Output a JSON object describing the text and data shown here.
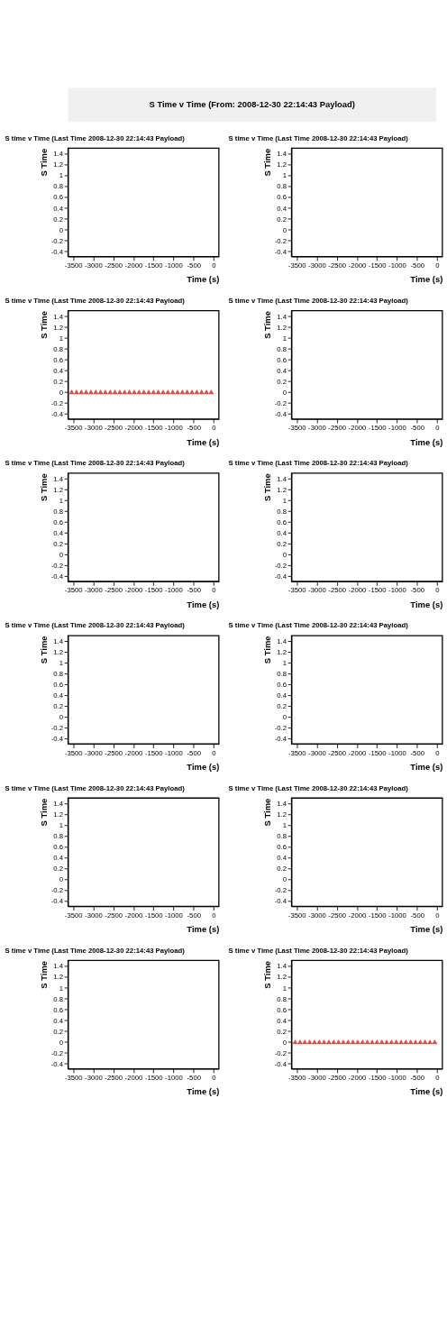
{
  "chart_data": [
    {
      "type": "scatter",
      "title": "S time v Time (Last Time 2008-12-30 22:14:43 Payload)",
      "annotations": [
        "S Time v Time (From: 2008-12-30 22:14:43 Payload)"
      ],
      "xlabel": "Time (s)",
      "ylabel": "S Time",
      "xlim": [
        -3630,
        130
      ],
      "ylim": [
        -0.5,
        1.5
      ],
      "xticks": [
        -3500,
        -3000,
        -2500,
        -2000,
        -1500,
        -1000,
        -500,
        0
      ],
      "yticks": [
        -0.4,
        -0.2,
        0,
        0.2,
        0.4,
        0.6,
        0.8,
        1,
        1.2,
        1.4
      ],
      "grid": false,
      "marker": "triangle"
    },
    {
      "type": "scatter",
      "title": "S time v Time (Last Time 2008-12-30 22:14:43 Payload)",
      "xlabel": "Time (s)",
      "ylabel": "S Time",
      "xlim": [
        -3630,
        130
      ],
      "ylim": [
        -0.5,
        1.5
      ],
      "xticks": [
        -3500,
        -3000,
        -2500,
        -2000,
        -1500,
        -1000,
        -500,
        0
      ],
      "yticks": [
        -0.4,
        -0.2,
        0,
        0.2,
        0.4,
        0.6,
        0.8,
        1,
        1.2,
        1.4
      ],
      "grid": false,
      "marker": "triangle"
    },
    {
      "type": "scatter",
      "title": "S time v Time (Last Time 2008-12-30 22:14:43 Payload)",
      "xlabel": "Time (s)",
      "ylabel": "S Time",
      "x": [
        -3540,
        -3420,
        -3300,
        -3180,
        -3060,
        -2940,
        -2820,
        -2700,
        -2580,
        -2460,
        -2340,
        -2220,
        -2100,
        -1980,
        -1860,
        -1740,
        -1620,
        -1500,
        -1380,
        -1260,
        -1140,
        -1020,
        -900,
        -780,
        -660,
        -540,
        -420,
        -300,
        -180,
        -60
      ],
      "series": [
        {
          "color": "#dd4f4a",
          "values": [
            0,
            0,
            0,
            0,
            0,
            0,
            0,
            0,
            0,
            0,
            0,
            0,
            0,
            0,
            0,
            0,
            0,
            0,
            0,
            0,
            0,
            0,
            0,
            0,
            0,
            0,
            0,
            0,
            0,
            0
          ]
        }
      ],
      "xlim": [
        -3630,
        130
      ],
      "ylim": [
        -0.5,
        1.5
      ],
      "xticks": [
        -3500,
        -3000,
        -2500,
        -2000,
        -1500,
        -1000,
        -500,
        0
      ],
      "yticks": [
        -0.4,
        -0.2,
        0,
        0.2,
        0.4,
        0.6,
        0.8,
        1,
        1.2,
        1.4
      ],
      "grid": false,
      "marker": "triangle"
    },
    {
      "type": "scatter",
      "title": "S time v Time (Last Time 2008-12-30 22:14:43 Payload)",
      "xlabel": "Time (s)",
      "ylabel": "S Time",
      "xlim": [
        -3630,
        130
      ],
      "ylim": [
        -0.5,
        1.5
      ],
      "xticks": [
        -3500,
        -3000,
        -2500,
        -2000,
        -1500,
        -1000,
        -500,
        0
      ],
      "yticks": [
        -0.4,
        -0.2,
        0,
        0.2,
        0.4,
        0.6,
        0.8,
        1,
        1.2,
        1.4
      ],
      "grid": false,
      "marker": "triangle"
    },
    {
      "type": "scatter",
      "title": "S time v Time (Last Time 2008-12-30 22:14:43 Payload)",
      "xlabel": "Time (s)",
      "ylabel": "S Time",
      "xlim": [
        -3630,
        130
      ],
      "ylim": [
        -0.5,
        1.5
      ],
      "xticks": [
        -3500,
        -3000,
        -2500,
        -2000,
        -1500,
        -1000,
        -500,
        0
      ],
      "yticks": [
        -0.4,
        -0.2,
        0,
        0.2,
        0.4,
        0.6,
        0.8,
        1,
        1.2,
        1.4
      ],
      "grid": false,
      "marker": "triangle"
    },
    {
      "type": "scatter",
      "title": "S time v Time (Last Time 2008-12-30 22:14:43 Payload)",
      "xlabel": "Time (s)",
      "ylabel": "S Time",
      "xlim": [
        -3630,
        130
      ],
      "ylim": [
        -0.5,
        1.5
      ],
      "xticks": [
        -3500,
        -3000,
        -2500,
        -2000,
        -1500,
        -1000,
        -500,
        0
      ],
      "yticks": [
        -0.4,
        -0.2,
        0,
        0.2,
        0.4,
        0.6,
        0.8,
        1,
        1.2,
        1.4
      ],
      "grid": false,
      "marker": "triangle"
    },
    {
      "type": "scatter",
      "title": "S time v Time (Last Time 2008-12-30 22:14:43 Payload)",
      "xlabel": "Time (s)",
      "ylabel": "S Time",
      "xlim": [
        -3630,
        130
      ],
      "ylim": [
        -0.5,
        1.5
      ],
      "xticks": [
        -3500,
        -3000,
        -2500,
        -2000,
        -1500,
        -1000,
        -500,
        0
      ],
      "yticks": [
        -0.4,
        -0.2,
        0,
        0.2,
        0.4,
        0.6,
        0.8,
        1,
        1.2,
        1.4
      ],
      "grid": false,
      "marker": "triangle"
    },
    {
      "type": "scatter",
      "title": "S time v Time (Last Time 2008-12-30 22:14:43 Payload)",
      "xlabel": "Time (s)",
      "ylabel": "S Time",
      "xlim": [
        -3630,
        130
      ],
      "ylim": [
        -0.5,
        1.5
      ],
      "xticks": [
        -3500,
        -3000,
        -2500,
        -2000,
        -1500,
        -1000,
        -500,
        0
      ],
      "yticks": [
        -0.4,
        -0.2,
        0,
        0.2,
        0.4,
        0.6,
        0.8,
        1,
        1.2,
        1.4
      ],
      "grid": false,
      "marker": "triangle"
    },
    {
      "type": "scatter",
      "title": "S time v Time (Last Time 2008-12-30 22:14:43 Payload)",
      "xlabel": "Time (s)",
      "ylabel": "S Time",
      "xlim": [
        -3630,
        130
      ],
      "ylim": [
        -0.5,
        1.5
      ],
      "xticks": [
        -3500,
        -3000,
        -2500,
        -2000,
        -1500,
        -1000,
        -500,
        0
      ],
      "yticks": [
        -0.4,
        -0.2,
        0,
        0.2,
        0.4,
        0.6,
        0.8,
        1,
        1.2,
        1.4
      ],
      "grid": false,
      "marker": "triangle"
    },
    {
      "type": "scatter",
      "title": "S time v Time (Last Time 2008-12-30 22:14:43 Payload)",
      "xlabel": "Time (s)",
      "ylabel": "S Time",
      "xlim": [
        -3630,
        130
      ],
      "ylim": [
        -0.5,
        1.5
      ],
      "xticks": [
        -3500,
        -3000,
        -2500,
        -2000,
        -1500,
        -1000,
        -500,
        0
      ],
      "yticks": [
        -0.4,
        -0.2,
        0,
        0.2,
        0.4,
        0.6,
        0.8,
        1,
        1.2,
        1.4
      ],
      "grid": false,
      "marker": "triangle"
    },
    {
      "type": "scatter",
      "title": "S time v Time (Last Time 2008-12-30 22:14:43 Payload)",
      "xlabel": "Time (s)",
      "ylabel": "S Time",
      "xlim": [
        -3630,
        130
      ],
      "ylim": [
        -0.5,
        1.5
      ],
      "xticks": [
        -3500,
        -3000,
        -2500,
        -2000,
        -1500,
        -1000,
        -500,
        0
      ],
      "yticks": [
        -0.4,
        -0.2,
        0,
        0.2,
        0.4,
        0.6,
        0.8,
        1,
        1.2,
        1.4
      ],
      "grid": false,
      "marker": "triangle"
    },
    {
      "type": "scatter",
      "title": "S time v Time (Last Time 2008-12-30 22:14:43 Payload)",
      "xlabel": "Time (s)",
      "ylabel": "S Time",
      "x": [
        -3540,
        -3420,
        -3300,
        -3180,
        -3060,
        -2940,
        -2820,
        -2700,
        -2580,
        -2460,
        -2340,
        -2220,
        -2100,
        -1980,
        -1860,
        -1740,
        -1620,
        -1500,
        -1380,
        -1260,
        -1140,
        -1020,
        -900,
        -780,
        -660,
        -540,
        -420,
        -300,
        -180,
        -60
      ],
      "series": [
        {
          "color": "#dd4f4a",
          "values": [
            0,
            0,
            0,
            0,
            0,
            0,
            0,
            0,
            0,
            0,
            0,
            0,
            0,
            0,
            0,
            0,
            0,
            0,
            0,
            0,
            0,
            0,
            0,
            0,
            0,
            0,
            0,
            0,
            0,
            0
          ]
        }
      ],
      "xlim": [
        -3630,
        130
      ],
      "ylim": [
        -0.5,
        1.5
      ],
      "xticks": [
        -3500,
        -3000,
        -2500,
        -2000,
        -1500,
        -1000,
        -500,
        0
      ],
      "yticks": [
        -0.4,
        -0.2,
        0,
        0.2,
        0.4,
        0.6,
        0.8,
        1,
        1.2,
        1.4
      ],
      "grid": false,
      "marker": "triangle"
    }
  ]
}
